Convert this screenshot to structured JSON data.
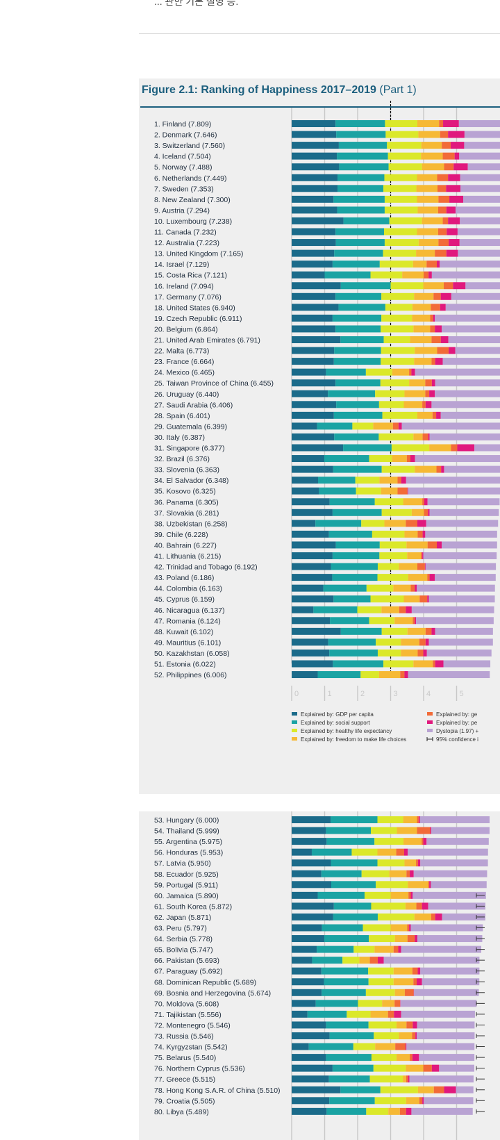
{
  "header_fragment": "... 관한 기본 설명 등.",
  "figure": {
    "title": "Figure 2.1: Ranking of Happiness 2017–2019",
    "part": "(Part 1)"
  },
  "colors": {
    "gdp": "#1b6b8a",
    "social": "#1aa3a3",
    "health": "#dbe82a",
    "freedom": "#f6b935",
    "generosity": "#f26b38",
    "corruption": "#e0197d",
    "dystopia": "#b9a3d3",
    "tick_line": "#c8c8c8"
  },
  "chart_data": {
    "type": "bar",
    "stacked": true,
    "orientation": "horizontal",
    "xlim": [
      0,
      5.8
    ],
    "x_ticks": [
      "0",
      "1",
      "2",
      "3",
      "4",
      "5"
    ],
    "reference_line": 3,
    "legend": [
      {
        "key": "gdp",
        "label": "Explained by: GDP per capita"
      },
      {
        "key": "social",
        "label": "Explained by: social support"
      },
      {
        "key": "health",
        "label": "Explained by: healthy life expectancy"
      },
      {
        "key": "freedom",
        "label": "Explained by: freedom to make life choices"
      },
      {
        "key": "generosity",
        "label": "Explained by: ge"
      },
      {
        "key": "corruption",
        "label": "Explained by: pe"
      },
      {
        "key": "dystopia",
        "label": "Dystopia (1.97) +"
      },
      {
        "key": "ci",
        "label": "95% confidence i"
      }
    ],
    "series_order": [
      "gdp",
      "social",
      "health",
      "freedom",
      "generosity",
      "corruption",
      "dystopia"
    ],
    "rows": [
      {
        "label": "1.  Finland (7.809)",
        "v": [
          1.33,
          1.5,
          0.98,
          0.66,
          0.12,
          0.48
        ]
      },
      {
        "label": "2.  Denmark (7.646)",
        "v": [
          1.35,
          1.5,
          0.99,
          0.66,
          0.24,
          0.5
        ]
      },
      {
        "label": "3.  Switzerland (7.560)",
        "v": [
          1.43,
          1.46,
          1.04,
          0.62,
          0.27,
          0.41
        ]
      },
      {
        "label": "4.  Iceland (7.504)",
        "v": [
          1.37,
          1.55,
          1.0,
          0.66,
          0.36,
          0.14
        ]
      },
      {
        "label": "5.  Norway (7.488)",
        "v": [
          1.44,
          1.5,
          1.01,
          0.67,
          0.29,
          0.43
        ]
      },
      {
        "label": "6.  Netherlands (7.449)",
        "v": [
          1.39,
          1.42,
          0.99,
          0.61,
          0.33,
          0.37
        ]
      },
      {
        "label": "7.  Sweden (7.353)",
        "v": [
          1.39,
          1.39,
          1.0,
          0.64,
          0.26,
          0.44
        ]
      },
      {
        "label": "8.  New Zealand (7.300)",
        "v": [
          1.27,
          1.55,
          0.98,
          0.65,
          0.33,
          0.42
        ]
      },
      {
        "label": "9.  Austria (7.294)",
        "v": [
          1.38,
          1.44,
          1.0,
          0.62,
          0.25,
          0.28
        ]
      },
      {
        "label": "10. Luxembourg (7.238)",
        "v": [
          1.57,
          1.39,
          0.99,
          0.63,
          0.16,
          0.36
        ]
      },
      {
        "label": "11. Canada (7.232)",
        "v": [
          1.33,
          1.47,
          1.0,
          0.64,
          0.26,
          0.33
        ]
      },
      {
        "label": "12. Australia (7.223)",
        "v": [
          1.34,
          1.48,
          1.03,
          0.6,
          0.31,
          0.33
        ]
      },
      {
        "label": "13. United Kingdom (7.165)",
        "v": [
          1.29,
          1.48,
          1.0,
          0.57,
          0.35,
          0.35
        ]
      },
      {
        "label": "14. Israel (7.129)",
        "v": [
          1.24,
          1.43,
          1.01,
          0.41,
          0.31,
          0.09
        ]
      },
      {
        "label": "15. Costa Rica (7.121)",
        "v": [
          1.0,
          1.39,
          0.96,
          0.65,
          0.15,
          0.1
        ]
      },
      {
        "label": "16. Ireland (7.094)",
        "v": [
          1.49,
          1.51,
          0.99,
          0.62,
          0.28,
          0.38
        ]
      },
      {
        "label": "17. Germany (7.076)",
        "v": [
          1.33,
          1.39,
          0.99,
          0.59,
          0.22,
          0.32
        ]
      },
      {
        "label": "18. United States (6.940)",
        "v": [
          1.42,
          1.42,
          0.82,
          0.56,
          0.28,
          0.17
        ]
      },
      {
        "label": "19. Czech Republic (6.911)",
        "v": [
          1.24,
          1.48,
          0.93,
          0.55,
          0.09,
          0.05
        ]
      },
      {
        "label": "20. Belgium (6.864)",
        "v": [
          1.33,
          1.37,
          0.99,
          0.51,
          0.14,
          0.21
        ]
      },
      {
        "label": "21. United Arab Emirates (6.791)",
        "v": [
          1.48,
          1.31,
          0.8,
          0.65,
          0.28,
          0.23
        ]
      },
      {
        "label": "22. Malta (6.773)",
        "v": [
          1.29,
          1.42,
          1.02,
          0.68,
          0.35,
          0.2
        ]
      },
      {
        "label": "23. France (6.664)",
        "v": [
          1.28,
          1.42,
          1.01,
          0.53,
          0.11,
          0.23
        ]
      },
      {
        "label": "24. Mexico (6.465)",
        "v": [
          1.04,
          1.21,
          0.8,
          0.51,
          0.07,
          0.11
        ]
      },
      {
        "label": "25. Taiwan Province of China (6.455)",
        "v": [
          1.33,
          1.36,
          0.87,
          0.49,
          0.2,
          0.1
        ]
      },
      {
        "label": "26. Uruguay (6.440)",
        "v": [
          1.1,
          1.43,
          0.89,
          0.63,
          0.12,
          0.17
        ]
      },
      {
        "label": "27. Saudi Arabia (6.406)",
        "v": [
          1.35,
          1.3,
          0.75,
          0.56,
          0.1,
          0.18
        ]
      },
      {
        "label": "28. Spain (6.401)",
        "v": [
          1.28,
          1.47,
          1.06,
          0.46,
          0.11,
          0.14
        ]
      },
      {
        "label": "29. Guatemala (6.399)",
        "v": [
          0.77,
          1.07,
          0.63,
          0.6,
          0.17,
          0.1
        ]
      },
      {
        "label": "30. Italy (6.387)",
        "v": [
          1.29,
          1.35,
          1.05,
          0.28,
          0.17,
          0.04
        ]
      },
      {
        "label": "31. Singapore (6.377)",
        "v": [
          1.56,
          1.47,
          1.14,
          0.66,
          0.19,
          0.52
        ]
      },
      {
        "label": "32. Brazil (6.376)",
        "v": [
          0.99,
          1.36,
          0.69,
          0.45,
          0.11,
          0.14
        ]
      },
      {
        "label": "33. Slovenia (6.363)",
        "v": [
          1.26,
          1.47,
          1.0,
          0.66,
          0.14,
          0.09
        ]
      },
      {
        "label": "34. El Salvador (6.348)",
        "v": [
          0.8,
          1.13,
          0.73,
          0.55,
          0.11,
          0.15
        ]
      },
      {
        "label": "35. Kosovo (6.325)",
        "v": [
          0.83,
          1.12,
          0.76,
          0.5,
          0.3,
          0.02
        ]
      },
      {
        "label": "36. Panama (6.305)",
        "v": [
          1.15,
          1.37,
          0.86,
          0.58,
          0.06,
          0.1
        ]
      },
      {
        "label": "37. Slovakia (6.281)",
        "v": [
          1.24,
          1.49,
          0.91,
          0.37,
          0.12,
          0.05
        ]
      },
      {
        "label": "38. Uzbekistan (6.258)",
        "v": [
          0.72,
          1.39,
          0.7,
          0.65,
          0.35,
          0.27
        ]
      },
      {
        "label": "39. Chile (6.228)",
        "v": [
          1.13,
          1.31,
          0.98,
          0.4,
          0.15,
          0.08
        ]
      },
      {
        "label": "40. Bahrain (6.227)",
        "v": [
          1.34,
          1.33,
          0.81,
          0.64,
          0.28,
          0.15
        ]
      },
      {
        "label": "41. Lithuania (6.215)",
        "v": [
          1.24,
          1.42,
          0.84,
          0.42,
          0.04,
          0.03
        ]
      },
      {
        "label": "42. Trinidad and Tobago (6.192)",
        "v": [
          1.19,
          1.42,
          0.64,
          0.56,
          0.23,
          0.02
        ]
      },
      {
        "label": "43. Poland (6.186)",
        "v": [
          1.23,
          1.37,
          0.93,
          0.58,
          0.07,
          0.16
        ]
      },
      {
        "label": "44. Colombia (6.163)",
        "v": [
          0.96,
          1.31,
          0.81,
          0.53,
          0.12,
          0.06
        ]
      },
      {
        "label": "45. Cyprus (6.159)",
        "v": [
          1.27,
          1.12,
          1.01,
          0.48,
          0.23,
          0.05
        ]
      },
      {
        "label": "46. Nicaragua (6.137)",
        "v": [
          0.66,
          1.33,
          0.73,
          0.54,
          0.2,
          0.18
        ]
      },
      {
        "label": "47. Romania (6.124)",
        "v": [
          1.16,
          1.19,
          0.77,
          0.55,
          0.06,
          0.04
        ]
      },
      {
        "label": "48. Kuwait (6.102)",
        "v": [
          1.49,
          1.24,
          0.78,
          0.55,
          0.18,
          0.11
        ]
      },
      {
        "label": "49. Mauritius (6.101)",
        "v": [
          1.11,
          1.44,
          0.76,
          0.56,
          0.19,
          0.1
        ]
      },
      {
        "label": "50. Kazakhstan (6.058)",
        "v": [
          1.14,
          1.47,
          0.7,
          0.51,
          0.17,
          0.11
        ]
      },
      {
        "label": "51. Estonia (6.022)",
        "v": [
          1.25,
          1.53,
          0.91,
          0.59,
          0.07,
          0.25
        ]
      },
      {
        "label": "52. Philippines (6.006)",
        "v": [
          0.79,
          1.3,
          0.56,
          0.64,
          0.13,
          0.11
        ]
      }
    ],
    "rows_part2": [
      {
        "label": "53. Hungary (6.000)",
        "v": [
          1.18,
          1.42,
          0.78,
          0.42,
          0.05,
          0.04
        ]
      },
      {
        "label": "54. Thailand (5.999)",
        "v": [
          1.04,
          1.36,
          0.79,
          0.61,
          0.4,
          0.03
        ]
      },
      {
        "label": "55. Argentina (5.975)",
        "v": [
          1.06,
          1.45,
          0.88,
          0.55,
          0.05,
          0.1
        ]
      },
      {
        "label": "56. Honduras (5.953)",
        "v": [
          0.61,
          1.21,
          0.78,
          0.57,
          0.24,
          0.11
        ]
      },
      {
        "label": "57. Latvia (5.950)",
        "v": [
          1.19,
          1.41,
          0.82,
          0.35,
          0.06,
          0.07
        ]
      },
      {
        "label": "58. Ecuador (5.925)",
        "v": [
          0.9,
          1.22,
          0.84,
          0.52,
          0.1,
          0.12
        ]
      },
      {
        "label": "59. Portugal (5.911)",
        "v": [
          1.2,
          1.35,
          0.97,
          0.62,
          0.03,
          0.05
        ]
      },
      {
        "label": "60. Jamaica (5.890)",
        "v": [
          0.79,
          1.42,
          0.79,
          0.54,
          0.07,
          0.06
        ]
      },
      {
        "label": "61. South Korea (5.872)",
        "v": [
          1.28,
          1.13,
          1.04,
          0.33,
          0.17,
          0.19
        ]
      },
      {
        "label": "62. Japan (5.871)",
        "v": [
          1.26,
          1.35,
          1.11,
          0.51,
          0.12,
          0.21
        ]
      },
      {
        "label": "63. Peru (5.797)",
        "v": [
          0.92,
          1.24,
          0.84,
          0.5,
          0.06,
          0.05
        ]
      },
      {
        "label": "64. Serbia (5.778)",
        "v": [
          0.99,
          1.35,
          0.79,
          0.38,
          0.22,
          0.08
        ]
      },
      {
        "label": "65. Bolivia (5.747)",
        "v": [
          0.76,
          1.12,
          0.63,
          0.58,
          0.14,
          0.09
        ]
      },
      {
        "label": "66. Pakistan (5.693)",
        "v": [
          0.62,
          0.92,
          0.51,
          0.32,
          0.24,
          0.18
        ]
      },
      {
        "label": "67. Paraguay (5.692)",
        "v": [
          0.9,
          1.42,
          0.77,
          0.57,
          0.16,
          0.08
        ]
      },
      {
        "label": "68. Dominican Republic (5.689)",
        "v": [
          0.98,
          1.35,
          0.76,
          0.6,
          0.1,
          0.16
        ]
      },
      {
        "label": "69. Bosnia and Herzegovina (5.674)",
        "v": [
          0.91,
          1.34,
          0.88,
          0.3,
          0.27,
          0.01
        ]
      },
      {
        "label": "70. Moldova (5.608)",
        "v": [
          0.73,
          1.28,
          0.73,
          0.38,
          0.17,
          0.01
        ]
      },
      {
        "label": "71. Tajikistan (5.556)",
        "v": [
          0.48,
          1.19,
          0.72,
          0.53,
          0.18,
          0.22
        ]
      },
      {
        "label": "72. Montenegro (5.546)",
        "v": [
          1.04,
          1.29,
          0.85,
          0.3,
          0.19,
          0.13
        ]
      },
      {
        "label": "73. Russia (5.546)",
        "v": [
          1.15,
          1.34,
          0.76,
          0.4,
          0.1,
          0.04
        ]
      },
      {
        "label": "74. Kyrgyzstan (5.542)",
        "v": [
          0.52,
          1.35,
          0.66,
          0.61,
          0.31,
          0.03
        ]
      },
      {
        "label": "75. Belarus (5.540)",
        "v": [
          1.04,
          1.38,
          0.76,
          0.4,
          0.08,
          0.2
        ]
      },
      {
        "label": "76. Northern Cyprus (5.536)",
        "v": [
          1.24,
          1.24,
          0.98,
          0.53,
          0.26,
          0.22
        ]
      },
      {
        "label": "77. Greece (5.515)",
        "v": [
          1.13,
          1.24,
          1.0,
          0.1,
          0.06,
          0.04
        ]
      },
      {
        "label": "78. Hong Kong S.A.R. of China (5.510)",
        "v": [
          1.48,
          1.21,
          1.14,
          0.48,
          0.31,
          0.36
        ]
      },
      {
        "label": "79. Croatia (5.505)",
        "v": [
          1.14,
          1.38,
          0.95,
          0.4,
          0.09,
          0.04
        ]
      },
      {
        "label": "80. Libya (5.489)",
        "v": [
          1.06,
          1.2,
          0.67,
          0.35,
          0.19,
          0.16
        ]
      }
    ]
  }
}
